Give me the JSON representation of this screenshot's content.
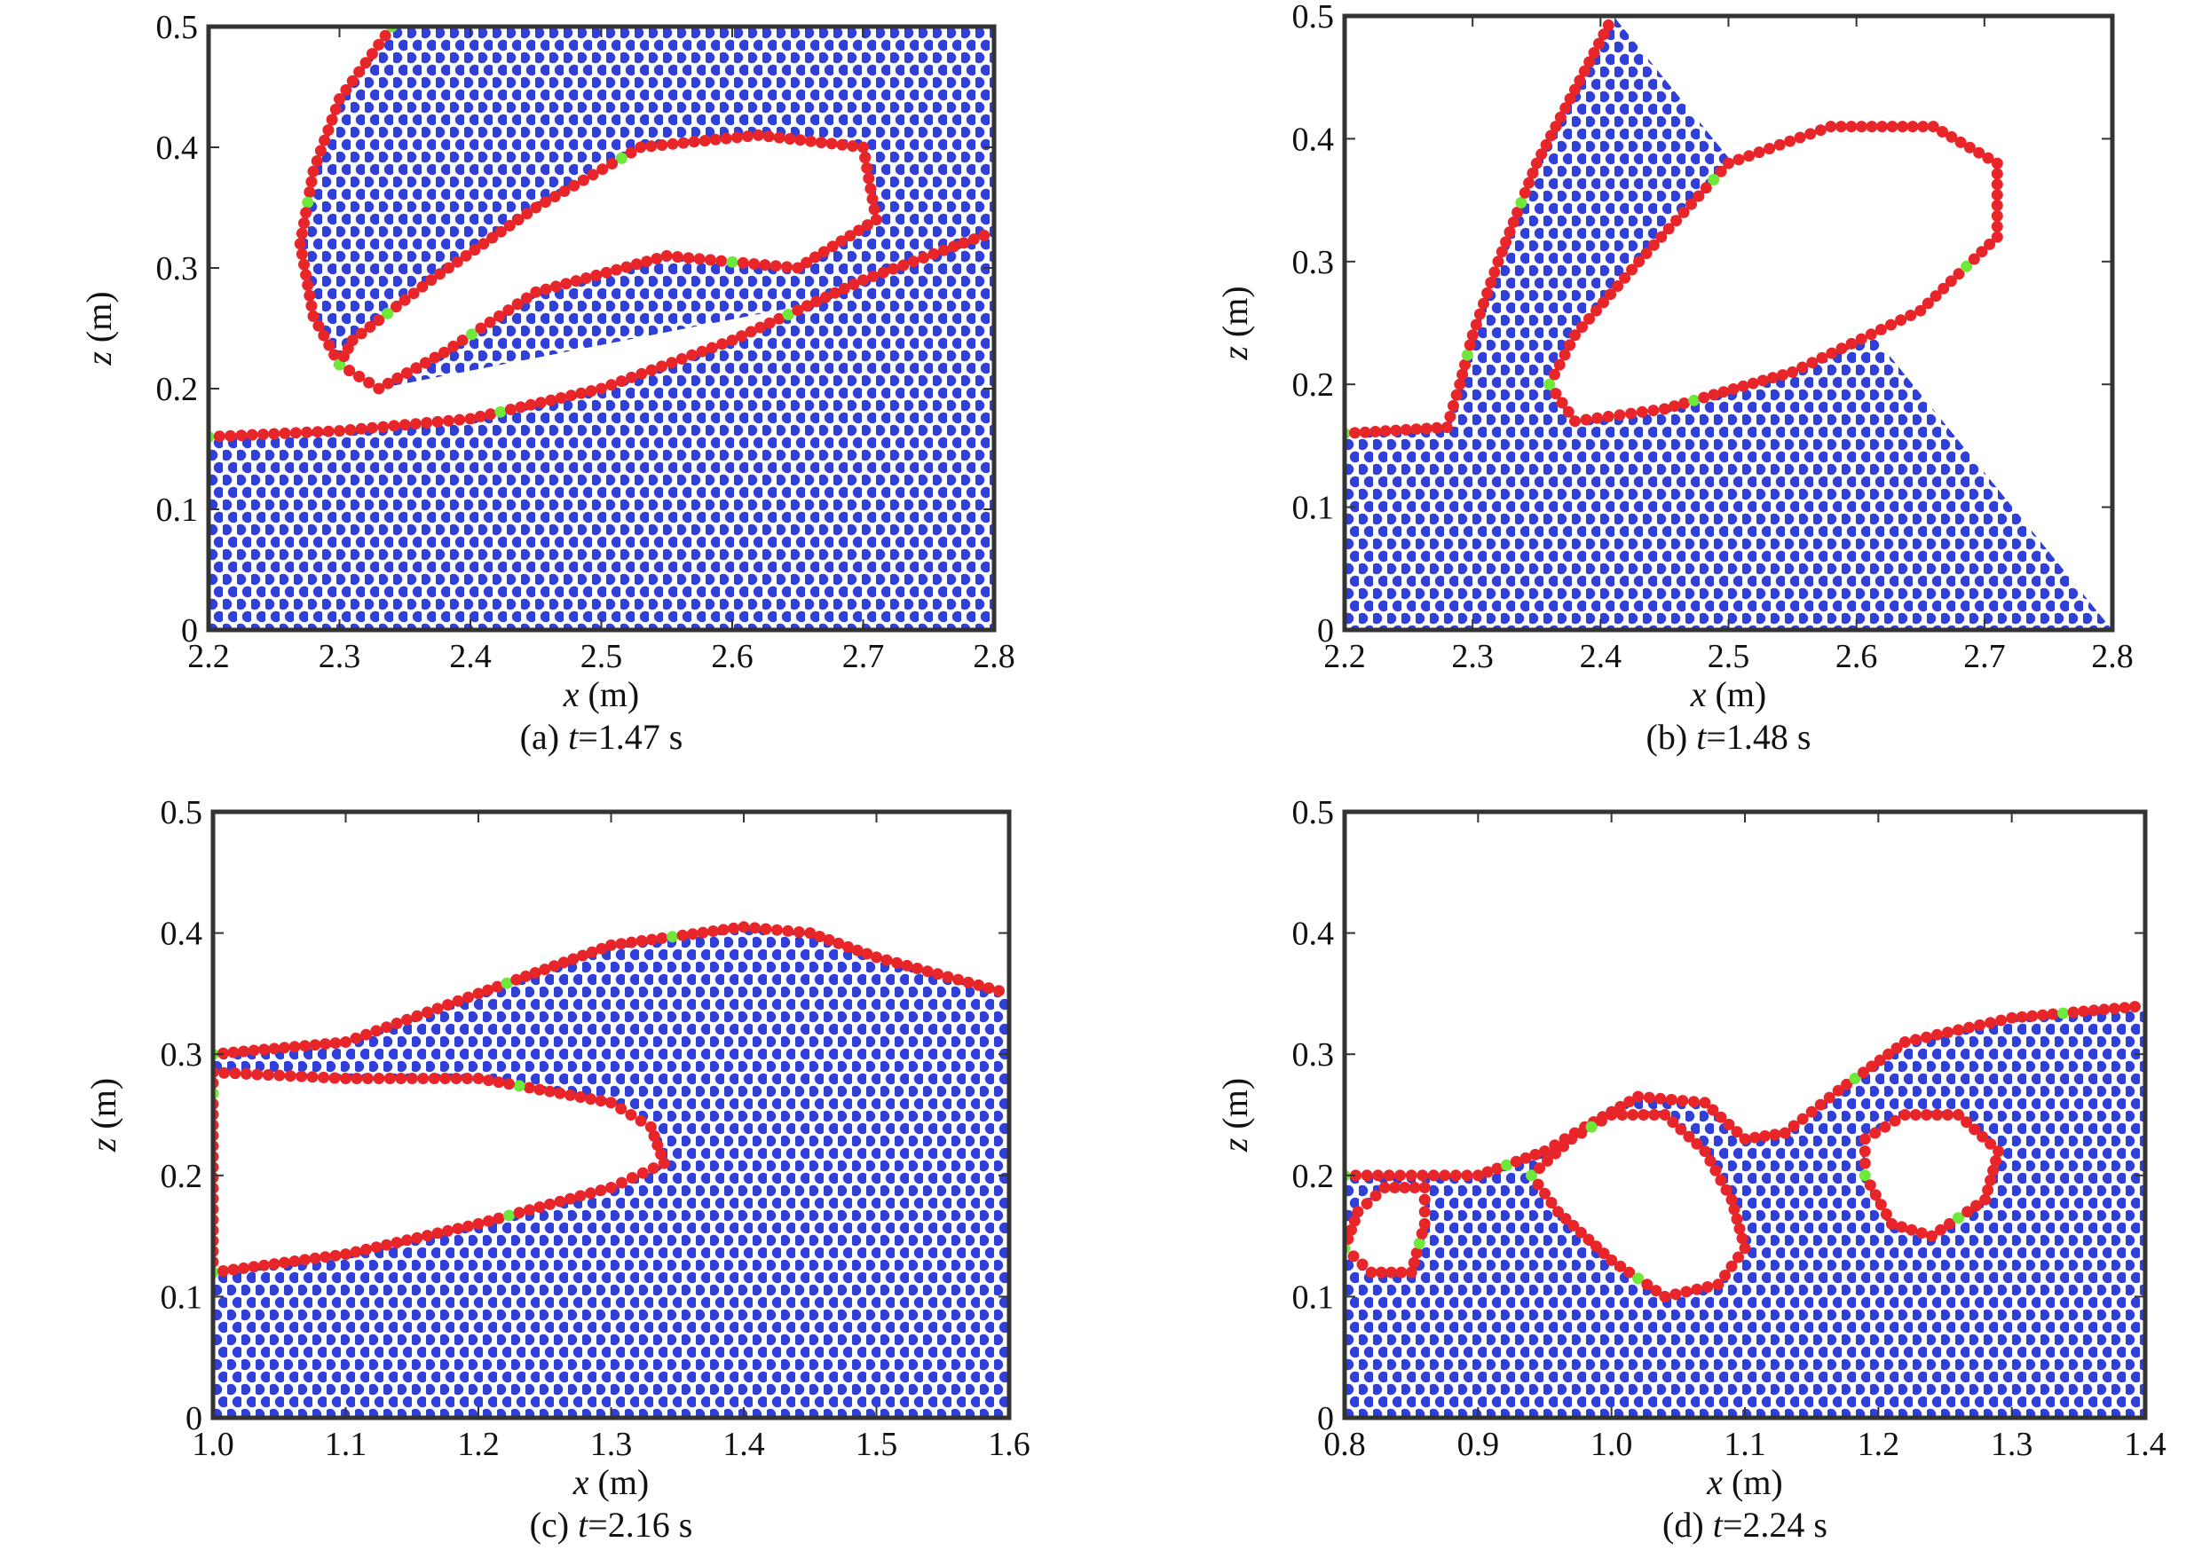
{
  "chart_data": [
    {
      "type": "scatter",
      "panel_label": "(a)",
      "caption_var": "t",
      "caption_value": "=1.47 s",
      "xlabel_var": "x",
      "xlabel_unit": " (m)",
      "ylabel_var": "z",
      "ylabel_unit": " (m)",
      "xlim": [
        2.2,
        2.8
      ],
      "ylim": [
        0,
        0.5
      ],
      "xticks": [
        "2.2",
        "2.3",
        "2.4",
        "2.5",
        "2.6",
        "2.7",
        "2.8"
      ],
      "yticks": [
        "0",
        "0.1",
        "0.2",
        "0.3",
        "0.4",
        "0.5"
      ],
      "colors": {
        "interior": "#2f3fd8",
        "surface": "#e8262a",
        "transition": "#6ee83a"
      },
      "surface_line": [
        [
          2.2,
          0.16
        ],
        [
          2.3,
          0.165
        ],
        [
          2.4,
          0.175
        ],
        [
          2.5,
          0.2
        ],
        [
          2.6,
          0.24
        ],
        [
          2.7,
          0.29
        ],
        [
          2.8,
          0.33
        ]
      ],
      "cavities": [
        [
          [
            2.3,
            0.22
          ],
          [
            2.33,
            0.2
          ],
          [
            2.38,
            0.23
          ],
          [
            2.45,
            0.28
          ],
          [
            2.55,
            0.31
          ],
          [
            2.65,
            0.3
          ],
          [
            2.71,
            0.34
          ],
          [
            2.7,
            0.4
          ],
          [
            2.62,
            0.41
          ],
          [
            2.53,
            0.4
          ],
          [
            2.45,
            0.35
          ],
          [
            2.37,
            0.29
          ],
          [
            2.31,
            0.24
          ]
        ]
      ],
      "jet_outline": [
        [
          2.34,
          0.5
        ],
        [
          2.3,
          0.44
        ],
        [
          2.28,
          0.38
        ],
        [
          2.27,
          0.32
        ],
        [
          2.28,
          0.26
        ],
        [
          2.3,
          0.22
        ],
        [
          2.33,
          0.2
        ]
      ]
    },
    {
      "type": "scatter",
      "panel_label": "(b)",
      "caption_var": "t",
      "caption_value": "=1.48 s",
      "xlabel_var": "x",
      "xlabel_unit": " (m)",
      "ylabel_var": "z",
      "ylabel_unit": " (m)",
      "xlim": [
        2.2,
        2.8
      ],
      "ylim": [
        0,
        0.5
      ],
      "xticks": [
        "2.2",
        "2.3",
        "2.4",
        "2.5",
        "2.6",
        "2.7",
        "2.8"
      ],
      "yticks": [
        "0",
        "0.1",
        "0.2",
        "0.3",
        "0.4",
        "0.5"
      ],
      "colors": {
        "interior": "#2f3fd8",
        "surface": "#e8262a",
        "transition": "#6ee83a"
      },
      "surface_line": [
        [
          2.2,
          0.16
        ],
        [
          2.28,
          0.165
        ],
        [
          2.29,
          0.2
        ],
        [
          2.3,
          0.24
        ],
        [
          2.32,
          0.3
        ],
        [
          2.35,
          0.38
        ],
        [
          2.38,
          0.44
        ],
        [
          2.41,
          0.5
        ]
      ],
      "cavities": [
        [
          [
            2.36,
            0.2
          ],
          [
            2.38,
            0.17
          ],
          [
            2.45,
            0.18
          ],
          [
            2.55,
            0.21
          ],
          [
            2.65,
            0.26
          ],
          [
            2.71,
            0.32
          ],
          [
            2.71,
            0.38
          ],
          [
            2.66,
            0.41
          ],
          [
            2.58,
            0.41
          ],
          [
            2.5,
            0.38
          ],
          [
            2.43,
            0.3
          ],
          [
            2.38,
            0.24
          ]
        ]
      ]
    },
    {
      "type": "scatter",
      "panel_label": "(c)",
      "caption_var": "t",
      "caption_value": "=2.16 s",
      "xlabel_var": "x",
      "xlabel_unit": " (m)",
      "ylabel_var": "z",
      "ylabel_unit": " (m)",
      "xlim": [
        1.0,
        1.6
      ],
      "ylim": [
        0,
        0.5
      ],
      "xticks": [
        "1.0",
        "1.1",
        "1.2",
        "1.3",
        "1.4",
        "1.5",
        "1.6"
      ],
      "yticks": [
        "0",
        "0.1",
        "0.2",
        "0.3",
        "0.4",
        "0.5"
      ],
      "colors": {
        "interior": "#2f3fd8",
        "surface": "#e8262a",
        "transition": "#6ee83a"
      },
      "surface_line": [
        [
          1.0,
          0.3
        ],
        [
          1.1,
          0.31
        ],
        [
          1.2,
          0.35
        ],
        [
          1.25,
          0.37
        ],
        [
          1.3,
          0.39
        ],
        [
          1.4,
          0.405
        ],
        [
          1.45,
          0.4
        ],
        [
          1.5,
          0.38
        ],
        [
          1.6,
          0.35
        ]
      ],
      "cavities": [
        [
          [
            1.0,
            0.12
          ],
          [
            1.1,
            0.135
          ],
          [
            1.2,
            0.16
          ],
          [
            1.3,
            0.19
          ],
          [
            1.34,
            0.21
          ],
          [
            1.33,
            0.24
          ],
          [
            1.3,
            0.26
          ],
          [
            1.2,
            0.28
          ],
          [
            1.1,
            0.28
          ],
          [
            1.0,
            0.285
          ]
        ]
      ]
    },
    {
      "type": "scatter",
      "panel_label": "(d)",
      "caption_var": "t",
      "caption_value": "=2.24 s",
      "xlabel_var": "x",
      "xlabel_unit": " (m)",
      "ylabel_var": "z",
      "ylabel_unit": " (m)",
      "xlim": [
        0.8,
        1.4
      ],
      "ylim": [
        0,
        0.5
      ],
      "xticks": [
        "0.8",
        "0.9",
        "1.0",
        "1.1",
        "1.2",
        "1.3",
        "1.4"
      ],
      "yticks": [
        "0",
        "0.1",
        "0.2",
        "0.3",
        "0.4",
        "0.5"
      ],
      "colors": {
        "interior": "#2f3fd8",
        "surface": "#e8262a",
        "transition": "#6ee83a"
      },
      "surface_line": [
        [
          0.8,
          0.2
        ],
        [
          0.85,
          0.2
        ],
        [
          0.9,
          0.2
        ],
        [
          0.95,
          0.22
        ],
        [
          0.98,
          0.24
        ],
        [
          1.02,
          0.265
        ],
        [
          1.07,
          0.26
        ],
        [
          1.1,
          0.23
        ],
        [
          1.13,
          0.235
        ],
        [
          1.17,
          0.27
        ],
        [
          1.22,
          0.31
        ],
        [
          1.3,
          0.33
        ],
        [
          1.4,
          0.34
        ]
      ],
      "cavities": [
        [
          [
            0.94,
            0.2
          ],
          [
            0.96,
            0.17
          ],
          [
            1.0,
            0.13
          ],
          [
            1.04,
            0.1
          ],
          [
            1.08,
            0.11
          ],
          [
            1.1,
            0.14
          ],
          [
            1.09,
            0.18
          ],
          [
            1.07,
            0.22
          ],
          [
            1.04,
            0.25
          ],
          [
            1.0,
            0.25
          ],
          [
            0.97,
            0.23
          ]
        ],
        [
          [
            1.19,
            0.2
          ],
          [
            1.21,
            0.16
          ],
          [
            1.24,
            0.15
          ],
          [
            1.28,
            0.18
          ],
          [
            1.29,
            0.22
          ],
          [
            1.26,
            0.25
          ],
          [
            1.22,
            0.25
          ],
          [
            1.19,
            0.23
          ]
        ],
        [
          [
            0.8,
            0.14
          ],
          [
            0.82,
            0.12
          ],
          [
            0.85,
            0.12
          ],
          [
            0.86,
            0.16
          ],
          [
            0.86,
            0.19
          ],
          [
            0.83,
            0.19
          ],
          [
            0.81,
            0.17
          ]
        ]
      ]
    }
  ]
}
